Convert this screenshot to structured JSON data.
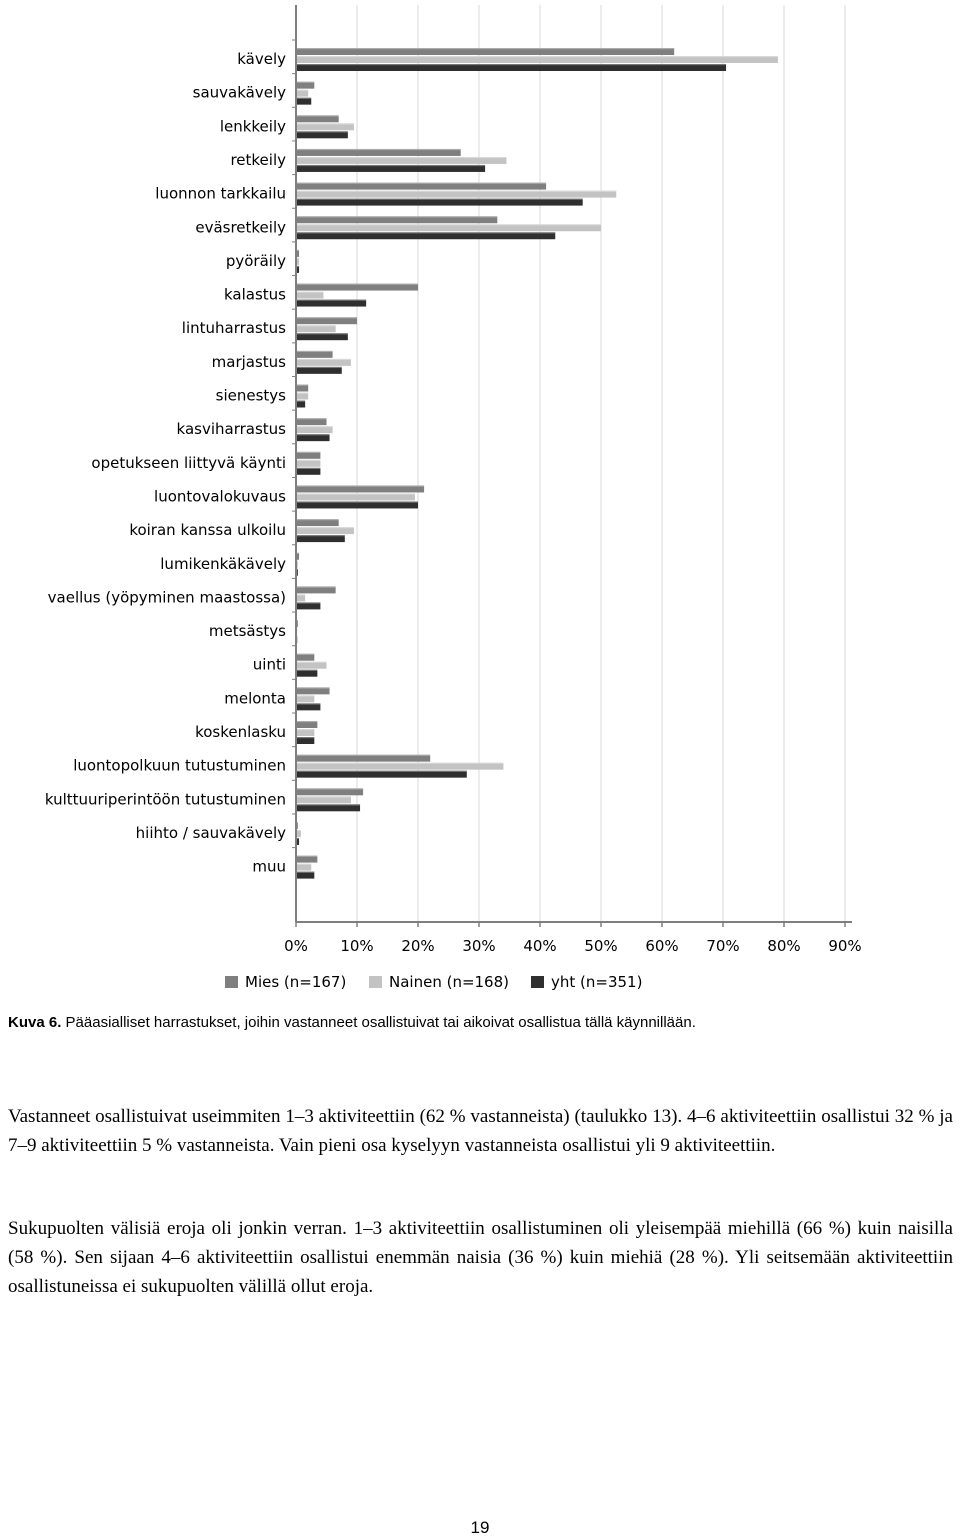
{
  "chart_data": {
    "type": "bar",
    "orientation": "horizontal",
    "categories": [
      "kävely",
      "sauvakävely",
      "lenkkeily",
      "retkeily",
      "luonnon tarkkailu",
      "eväsretkeily",
      "pyöräily",
      "kalastus",
      "lintuharrastus",
      "marjastus",
      "sienestys",
      "kasviharrastus",
      "opetukseen liittyvä käynti",
      "luontovalokuvaus",
      "koiran kanssa ulkoilu",
      "lumikenkäkävely",
      "vaellus (yöpyminen maastossa)",
      "metsästys",
      "uinti",
      "melonta",
      "koskenlasku",
      "luontopolkuun tutustuminen",
      "kulttuuriperintöön tutustuminen",
      "hiihto / sauvakävely",
      "muu"
    ],
    "series": [
      {
        "name": "Mies (n=167)",
        "color": "#7f7f7f",
        "values": [
          62,
          3,
          7,
          27,
          41,
          33,
          0.5,
          20,
          10,
          6,
          2,
          5,
          4,
          21,
          7,
          0.5,
          6.5,
          0.3,
          3,
          5.5,
          3.5,
          22,
          11,
          0.3,
          3.5
        ]
      },
      {
        "name": "Nainen (n=168)",
        "color": "#c3c3c3",
        "values": [
          79,
          2,
          9.5,
          34.5,
          52.5,
          50,
          0.5,
          4.5,
          6.5,
          9,
          2,
          6,
          4,
          19.5,
          9.5,
          0.3,
          1.5,
          0.2,
          5,
          3,
          3,
          34,
          9,
          0.8,
          2.5
        ]
      },
      {
        "name": "yht (n=351)",
        "color": "#2f2f2f",
        "values": [
          70.5,
          2.5,
          8.5,
          31,
          47,
          42.5,
          0.5,
          11.5,
          8.5,
          7.5,
          1.5,
          5.5,
          4,
          20,
          8,
          0.3,
          4,
          0.2,
          3.5,
          4,
          3,
          28,
          10.5,
          0.5,
          3
        ]
      }
    ],
    "x_ticks": [
      "0%",
      "10%",
      "20%",
      "30%",
      "40%",
      "50%",
      "60%",
      "70%",
      "80%",
      "90%"
    ],
    "xlim": [
      0,
      90
    ],
    "grid": true,
    "legend_position": "bottom"
  },
  "caption": {
    "label": "Kuva 6.",
    "text": "Pääasialliset harrastukset, joihin vastanneet osallistuivat tai aikoivat osallistua tällä käynnillään."
  },
  "paragraphs": [
    "Vastanneet osallistuivat useimmiten 1–3 aktiviteettiin (62 % vastanneista) (taulukko 13). 4–6 aktiviteettiin osallistui 32 % ja 7–9 aktiviteettiin 5 % vastanneista. Vain pieni osa kyselyyn vastanneista osallistui yli 9 aktiviteettiin.",
    "Sukupuolten välisiä eroja oli jonkin verran. 1–3 aktiviteettiin osallistuminen oli yleisempää miehillä (66 %) kuin naisilla (58 %). Sen sijaan 4–6 aktiviteettiin osallistui enemmän naisia (36 %) kuin miehiä (28 %). Yli seitsemään aktiviteettiin osallistuneissa ei sukupuolten välillä ollut eroja."
  ],
  "page_number": "19"
}
